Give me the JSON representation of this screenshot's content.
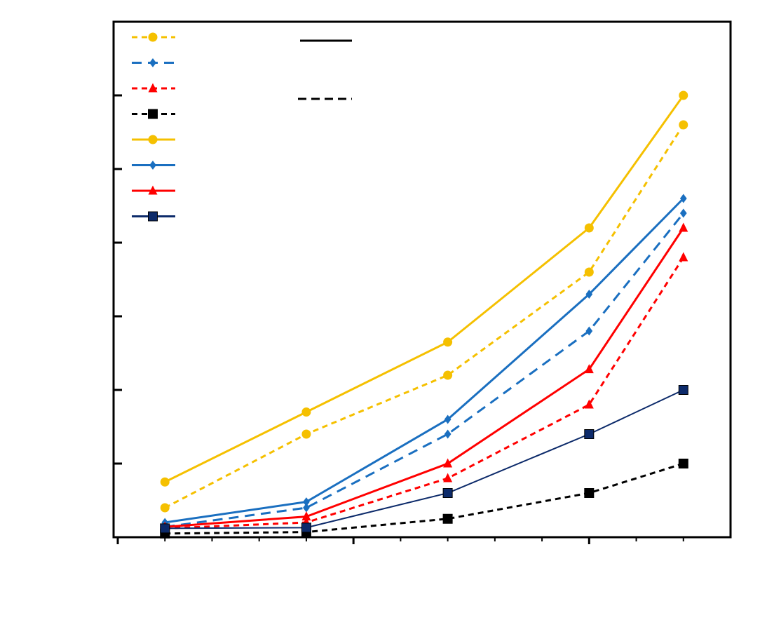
{
  "chart_data": {
    "type": "line",
    "x": [
      1,
      4,
      7,
      10,
      12
    ],
    "xlim": [
      0,
      13
    ],
    "xticks": [
      0,
      5,
      10
    ],
    "xminorticks": [
      1,
      2,
      3,
      4,
      6,
      7,
      8,
      9,
      11,
      12
    ],
    "ylim": [
      0,
      7
    ],
    "yticks": [
      0,
      1,
      2,
      3,
      4,
      5,
      6,
      7
    ],
    "series": [
      {
        "color": "#f5c000",
        "dash": "dashed",
        "marker": "circle",
        "values": [
          0.4,
          1.4,
          2.2,
          3.6,
          5.6
        ]
      },
      {
        "color": "#1a6fc0",
        "dash": "dashed",
        "marker": "diamond",
        "values": [
          0.14,
          0.4,
          1.4,
          2.8,
          4.4
        ]
      },
      {
        "color": "#ff0000",
        "dash": "dashed",
        "marker": "triangle",
        "values": [
          0.12,
          0.2,
          0.8,
          1.8,
          3.8
        ]
      },
      {
        "color": "#000000",
        "dash": "dashed",
        "marker": "square",
        "values": [
          0.05,
          0.07,
          0.25,
          0.6,
          1.0
        ]
      },
      {
        "color": "#f5c000",
        "dash": "solid",
        "marker": "circle",
        "values": [
          0.75,
          1.7,
          2.65,
          4.2,
          6.0
        ]
      },
      {
        "color": "#1a6fc0",
        "dash": "solid",
        "marker": "diamond",
        "values": [
          0.2,
          0.48,
          1.6,
          3.3,
          4.6
        ]
      },
      {
        "color": "#ff0000",
        "dash": "solid",
        "marker": "triangle",
        "values": [
          0.14,
          0.28,
          1.0,
          2.28,
          4.2
        ]
      },
      {
        "color": "#0c2a6a",
        "dash": "solid",
        "marker": "square",
        "values": [
          0.12,
          0.13,
          0.6,
          1.4,
          2.0
        ]
      }
    ]
  }
}
